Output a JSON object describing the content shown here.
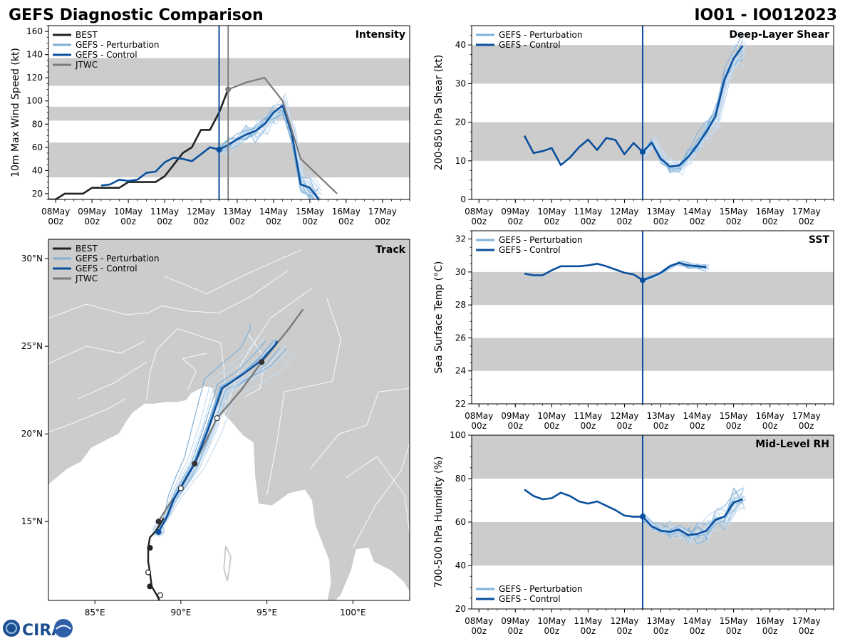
{
  "header": {
    "title_left": "GEFS Diagnostic Comparison",
    "title_right": "IO01 - IO012023"
  },
  "colors": {
    "best": "#222222",
    "perturbation": "#7fb1d8",
    "perturbation_light": "#c6dcef",
    "control": "#0a4f9e",
    "jtwc": "#7a7a7a",
    "band": "#cccccc",
    "land": "#cccccc",
    "border": "#ffffff"
  },
  "time_axis": {
    "labels": [
      "08May\n00z",
      "09May\n00z",
      "10May\n00z",
      "11May\n00z",
      "12May\n00z",
      "13May\n00z",
      "14May\n00z",
      "15May\n00z",
      "16May\n00z",
      "17May\n00z"
    ],
    "min_day": 7.8,
    "max_day": 17.75,
    "init_day": 12.5
  },
  "legends": {
    "best": "BEST",
    "perturbation": "GEFS - Perturbation",
    "control": "GEFS - Control",
    "jtwc": "JTWC"
  },
  "footer": {
    "logo_text": "CIRA"
  },
  "chart_data": [
    {
      "id": "intensity",
      "type": "line",
      "title": "Intensity",
      "ylabel": "10m Max Wind Speed (kt)",
      "ylim": [
        15,
        165
      ],
      "yticks": [
        20,
        40,
        60,
        80,
        100,
        120,
        140,
        160
      ],
      "bands": [
        [
          34,
          64
        ],
        [
          83,
          95
        ],
        [
          113,
          137
        ]
      ],
      "jtwc_init_day": 12.75,
      "series": [
        {
          "name": "BEST",
          "x": [
            7.8,
            8.0,
            8.25,
            8.75,
            9.0,
            9.25,
            9.75,
            10.0,
            10.25,
            10.75,
            11.0,
            11.25,
            11.5,
            11.75,
            12.0,
            12.25,
            12.5,
            12.75
          ],
          "values": [
            15,
            15,
            20,
            20,
            25,
            25,
            25,
            30,
            30,
            30,
            35,
            45,
            55,
            60,
            75,
            75,
            90,
            110
          ]
        },
        {
          "name": "GEFS - Control",
          "x": [
            9.25,
            9.5,
            9.75,
            10.0,
            10.25,
            10.5,
            10.75,
            11.0,
            11.25,
            11.5,
            11.75,
            12.0,
            12.25,
            12.5,
            12.75,
            13.0,
            13.25,
            13.5,
            13.75,
            14.0,
            14.25,
            14.5,
            14.75,
            15.0,
            15.25
          ],
          "values": [
            27,
            28,
            32,
            31,
            32,
            38,
            39,
            47,
            51,
            50,
            48,
            54,
            60,
            58,
            62,
            67,
            71,
            74,
            80,
            90,
            96,
            72,
            28,
            25,
            15
          ]
        },
        {
          "name": "JTWC",
          "x": [
            12.75,
            13.0,
            13.25,
            13.75,
            14.25,
            14.75,
            15.75
          ],
          "values": [
            110,
            113,
            116,
            120,
            100,
            50,
            20
          ]
        }
      ]
    },
    {
      "id": "shear",
      "type": "line",
      "title": "Deep-Layer Shear",
      "ylabel": "200-850 hPa Shear (kt)",
      "ylim": [
        0,
        45
      ],
      "yticks": [
        0,
        10,
        20,
        30,
        40
      ],
      "bands": [
        [
          10,
          20
        ],
        [
          30,
          40
        ]
      ],
      "series": [
        {
          "name": "GEFS - Control",
          "x": [
            9.25,
            9.5,
            9.75,
            10.0,
            10.25,
            10.5,
            10.75,
            11.0,
            11.25,
            11.5,
            11.75,
            12.0,
            12.25,
            12.5,
            12.75,
            13.0,
            13.25,
            13.5,
            13.75,
            14.0,
            14.25,
            14.5,
            14.75,
            15.0,
            15.25
          ],
          "values": [
            16.5,
            12,
            12.5,
            13.3,
            8.9,
            10.8,
            13.5,
            15.5,
            12.8,
            15.9,
            15.4,
            11.7,
            14.6,
            12.3,
            14.7,
            10.5,
            8.5,
            8.8,
            11,
            14,
            17.5,
            21.5,
            31,
            36.5,
            39.8
          ]
        }
      ]
    },
    {
      "id": "sst",
      "type": "line",
      "title": "SST",
      "ylabel": "Sea Surface Temp (°C)",
      "ylim": [
        22,
        32.5
      ],
      "yticks": [
        22,
        24,
        26,
        28,
        30,
        32
      ],
      "bands": [
        [
          24,
          26
        ],
        [
          28,
          30
        ]
      ],
      "series": [
        {
          "name": "GEFS - Control",
          "x": [
            9.25,
            9.5,
            9.75,
            10.0,
            10.25,
            10.5,
            10.75,
            11.0,
            11.25,
            11.5,
            11.75,
            12.0,
            12.25,
            12.5,
            12.75,
            13.0,
            13.25,
            13.5,
            13.75,
            14.0,
            14.25
          ],
          "values": [
            29.9,
            29.8,
            29.8,
            30.1,
            30.35,
            30.35,
            30.35,
            30.4,
            30.5,
            30.35,
            30.15,
            29.95,
            29.85,
            29.5,
            29.7,
            29.95,
            30.35,
            30.55,
            30.4,
            30.35,
            30.3
          ]
        }
      ]
    },
    {
      "id": "rh",
      "type": "line",
      "title": "Mid-Level RH",
      "ylabel": "700-500 hPa Humidity (%)",
      "ylim": [
        20,
        100
      ],
      "yticks": [
        20,
        40,
        60,
        80,
        100
      ],
      "bands": [
        [
          40,
          60
        ],
        [
          80,
          100
        ]
      ],
      "series": [
        {
          "name": "GEFS - Control",
          "x": [
            9.25,
            9.5,
            9.75,
            10.0,
            10.25,
            10.5,
            10.75,
            11.0,
            11.25,
            11.5,
            11.75,
            12.0,
            12.25,
            12.5,
            12.75,
            13.0,
            13.25,
            13.5,
            13.75,
            14.0,
            14.25,
            14.5,
            14.75,
            15.0,
            15.25
          ],
          "values": [
            75,
            72,
            70.5,
            71,
            73.5,
            72,
            69.5,
            68.5,
            69.5,
            67.5,
            65.5,
            63,
            62.5,
            62.5,
            58,
            56,
            55.5,
            56.5,
            54,
            54.5,
            56,
            61,
            62.5,
            69,
            70.5
          ]
        }
      ]
    },
    {
      "id": "track",
      "type": "map",
      "title": "Track",
      "lon_range": [
        82.3,
        103.3
      ],
      "lat_range": [
        10.5,
        31.1
      ],
      "lon_ticks": [
        85,
        90,
        95,
        100
      ],
      "lon_labels": [
        "85°E",
        "90°E",
        "95°E",
        "100°E"
      ],
      "lat_ticks": [
        15,
        20,
        25,
        30
      ],
      "lat_labels": [
        "15°N",
        "20°N",
        "25°N",
        "30°N"
      ],
      "best": {
        "lon": [
          88.8,
          88.6,
          88.3,
          88.2,
          88.1,
          88.1,
          88.2,
          88.5,
          88.7,
          89.0
        ],
        "lat": [
          10.4,
          10.8,
          11.3,
          12.1,
          12.7,
          13.5,
          14.1,
          14.4,
          14.7,
          15.2
        ],
        "marker_lon": [
          88.8,
          88.2,
          88.1,
          88.2
        ],
        "marker_lat": [
          10.8,
          11.3,
          12.1,
          13.5
        ],
        "marker_open": [
          true,
          false,
          true,
          false
        ]
      },
      "control": {
        "lon": [
          88.7,
          89.2,
          89.6,
          90.2,
          90.8,
          91.6,
          92.4,
          93.6,
          94.7,
          95.5,
          95.6
        ],
        "lat": [
          14.4,
          15.3,
          16.3,
          17.3,
          18.3,
          20.3,
          22.6,
          23.4,
          24.2,
          25.1,
          25.3
        ]
      },
      "jtwc": {
        "lon": [
          88.7,
          89.2,
          90.0,
          90.8,
          92.1,
          93.5,
          94.7,
          96.2,
          97.1
        ],
        "lat": [
          15.0,
          15.8,
          16.9,
          18.3,
          20.9,
          22.5,
          24.1,
          25.9,
          27.1
        ],
        "marker_lon": [
          88.7,
          90.0,
          90.8,
          92.1,
          94.7
        ],
        "marker_lat": [
          15.0,
          16.9,
          18.3,
          20.9,
          24.1
        ],
        "marker_open": [
          false,
          true,
          false,
          true,
          false
        ]
      }
    }
  ]
}
